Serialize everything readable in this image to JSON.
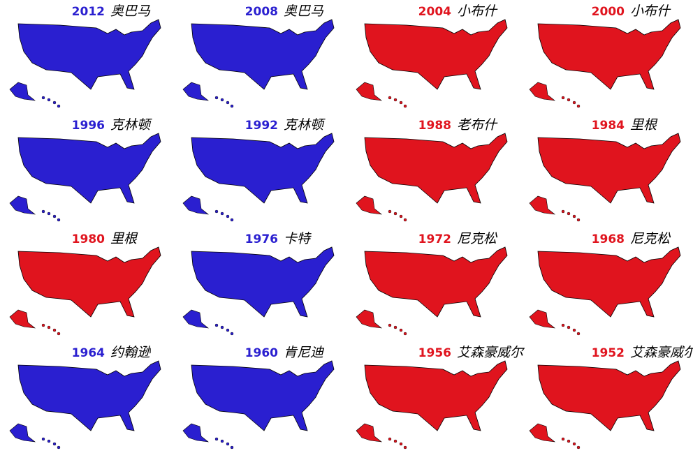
{
  "panels": [
    {
      "year": "2012",
      "name": "奥巴马",
      "color": "#2a1fd0"
    },
    {
      "year": "2008",
      "name": "奥巴马",
      "color": "#2a1fd0"
    },
    {
      "year": "2004",
      "name": "小布什",
      "color": "#e0141e"
    },
    {
      "year": "2000",
      "name": "小布什",
      "color": "#e0141e"
    },
    {
      "year": "1996",
      "name": "克林顿",
      "color": "#2a1fd0"
    },
    {
      "year": "1992",
      "name": "克林顿",
      "color": "#2a1fd0"
    },
    {
      "year": "1988",
      "name": "老布什",
      "color": "#e0141e"
    },
    {
      "year": "1984",
      "name": "里根",
      "color": "#e0141e"
    },
    {
      "year": "1980",
      "name": "里根",
      "color": "#e0141e"
    },
    {
      "year": "1976",
      "name": "卡特",
      "color": "#2a1fd0"
    },
    {
      "year": "1972",
      "name": "尼克松",
      "color": "#e0141e"
    },
    {
      "year": "1968",
      "name": "尼克松",
      "color": "#e0141e"
    },
    {
      "year": "1964",
      "name": "约翰逊",
      "color": "#2a1fd0"
    },
    {
      "year": "1960",
      "name": "肯尼迪",
      "color": "#2a1fd0"
    },
    {
      "year": "1956",
      "name": "艾森豪威尔",
      "color": "#e0141e"
    },
    {
      "year": "1952",
      "name": "艾森豪威尔",
      "color": "#e0141e"
    }
  ]
}
